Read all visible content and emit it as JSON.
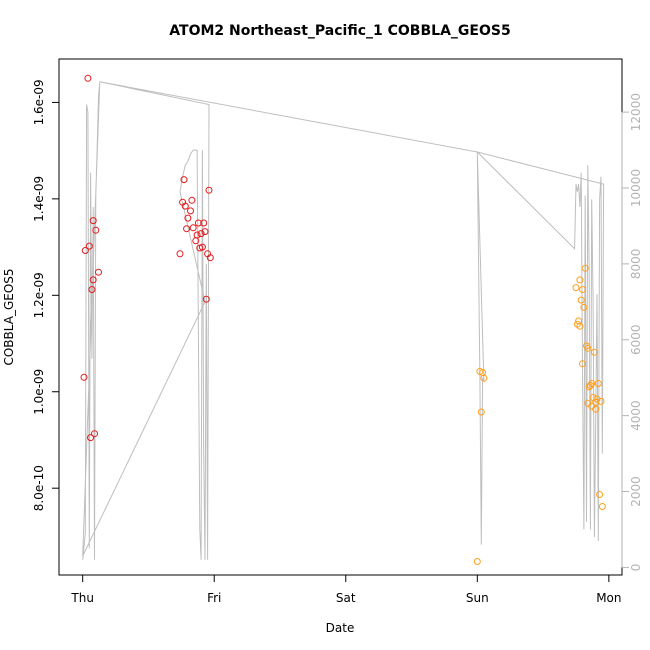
{
  "chart_data": {
    "type": "scatter",
    "title": "ATOM2 Northeast_Pacific_1 COBBLA_GEOS5",
    "xlabel": "Date",
    "ylabel": "COBBLA_GEOS5",
    "x_unit": "days since Thursday 00:00",
    "x_ticks": [
      {
        "value": 0,
        "label": "Thu"
      },
      {
        "value": 1,
        "label": "Fri"
      },
      {
        "value": 2,
        "label": "Sat"
      },
      {
        "value": 3,
        "label": "Sun"
      },
      {
        "value": 4,
        "label": "Mon"
      }
    ],
    "xlim": [
      -0.18,
      4.1
    ],
    "y_left": {
      "ylim": [
        6.2e-10,
        1.69e-09
      ],
      "ticks": [
        {
          "value": 8e-10,
          "label": "8.0e-10"
        },
        {
          "value": 1e-09,
          "label": "1.0e-09"
        },
        {
          "value": 1.2e-09,
          "label": "1.2e-09"
        },
        {
          "value": 1.4e-09,
          "label": "1.4e-09"
        },
        {
          "value": 1.6e-09,
          "label": "1.6e-09"
        }
      ]
    },
    "y_right": {
      "ylim": [
        -200,
        13400
      ],
      "color": "#b3b3b3",
      "ticks": [
        {
          "value": 0,
          "label": "0"
        },
        {
          "value": 2000,
          "label": "2000"
        },
        {
          "value": 4000,
          "label": "4000"
        },
        {
          "value": 6000,
          "label": "6000"
        },
        {
          "value": 8000,
          "label": "8000"
        },
        {
          "value": 10000,
          "label": "10000"
        },
        {
          "value": 12000,
          "label": "12000"
        }
      ]
    },
    "series": [
      {
        "color": "#e41a1c",
        "axis": "left",
        "points": [
          [
            0.01,
            1.03e-09
          ],
          [
            0.02,
            1.293e-09
          ],
          [
            0.04,
            1.65e-09
          ],
          [
            0.05,
            1.302e-09
          ],
          [
            0.06,
            9.05e-10
          ],
          [
            0.07,
            1.212e-09
          ],
          [
            0.08,
            1.355e-09
          ],
          [
            0.08,
            1.232e-09
          ],
          [
            0.09,
            9.13e-10
          ],
          [
            0.1,
            1.335e-09
          ],
          [
            0.12,
            1.248e-09
          ],
          [
            0.74,
            1.286e-09
          ],
          [
            0.76,
            1.393e-09
          ],
          [
            0.77,
            1.44e-09
          ],
          [
            0.78,
            1.385e-09
          ],
          [
            0.79,
            1.338e-09
          ],
          [
            0.8,
            1.36e-09
          ],
          [
            0.82,
            1.375e-09
          ],
          [
            0.83,
            1.397e-09
          ],
          [
            0.84,
            1.34e-09
          ],
          [
            0.86,
            1.313e-09
          ],
          [
            0.87,
            1.325e-09
          ],
          [
            0.88,
            1.35e-09
          ],
          [
            0.89,
            1.298e-09
          ],
          [
            0.9,
            1.328e-09
          ],
          [
            0.91,
            1.3e-09
          ],
          [
            0.92,
            1.35e-09
          ],
          [
            0.93,
            1.332e-09
          ],
          [
            0.94,
            1.192e-09
          ],
          [
            0.95,
            1.286e-09
          ],
          [
            0.96,
            1.418e-09
          ],
          [
            0.97,
            1.278e-09
          ]
        ]
      },
      {
        "color": "#ff9f1c",
        "axis": "left",
        "points": [
          [
            3.0,
            6.48e-10
          ],
          [
            3.02,
            1.042e-09
          ],
          [
            3.03,
            9.58e-10
          ],
          [
            3.04,
            1.04e-09
          ],
          [
            3.05,
            1.028e-09
          ],
          [
            3.75,
            1.216e-09
          ],
          [
            3.76,
            1.14e-09
          ],
          [
            3.77,
            1.147e-09
          ],
          [
            3.78,
            1.232e-09
          ],
          [
            3.78,
            1.136e-09
          ],
          [
            3.79,
            1.19e-09
          ],
          [
            3.8,
            1.212e-09
          ],
          [
            3.8,
            1.058e-09
          ],
          [
            3.81,
            1.175e-09
          ],
          [
            3.82,
            1.256e-09
          ],
          [
            3.83,
            1.095e-09
          ],
          [
            3.84,
            9.76e-10
          ],
          [
            3.84,
            1.09e-09
          ],
          [
            3.85,
            1.01e-09
          ],
          [
            3.86,
            1.013e-09
          ],
          [
            3.87,
            9.7e-10
          ],
          [
            3.87,
            1.017e-09
          ],
          [
            3.88,
            9.88e-10
          ],
          [
            3.89,
            1.082e-09
          ],
          [
            3.9,
            9.78e-10
          ],
          [
            3.9,
            9.64e-10
          ],
          [
            3.91,
            9.85e-10
          ],
          [
            3.92,
            1.017e-09
          ],
          [
            3.93,
            7.87e-10
          ],
          [
            3.94,
            9.8e-10
          ],
          [
            3.95,
            7.62e-10
          ]
        ]
      }
    ],
    "altitude_line": {
      "color": "#bebebe",
      "axis": "right",
      "points": [
        [
          0.0,
          200
        ],
        [
          0.02,
          900
        ],
        [
          0.03,
          12200
        ],
        [
          0.04,
          12000
        ],
        [
          0.05,
          500
        ],
        [
          0.06,
          10400
        ],
        [
          0.07,
          5500
        ],
        [
          0.08,
          9500
        ],
        [
          0.09,
          200
        ],
        [
          0.1,
          9800
        ],
        [
          0.11,
          11000
        ],
        [
          0.12,
          12400
        ],
        [
          0.13,
          12800
        ],
        [
          0.0,
          300
        ],
        [
          0.93,
          7000
        ],
        [
          0.74,
          9900
        ],
        [
          0.76,
          10300
        ],
        [
          0.78,
          10600
        ],
        [
          0.8,
          10700
        ],
        [
          0.82,
          10900
        ],
        [
          0.84,
          11000
        ],
        [
          0.87,
          11000
        ],
        [
          0.89,
          1000
        ],
        [
          0.9,
          200
        ],
        [
          0.91,
          11000
        ],
        [
          0.92,
          3000
        ],
        [
          0.93,
          200
        ],
        [
          0.94,
          8000
        ],
        [
          0.95,
          200
        ],
        [
          0.96,
          12200
        ],
        [
          0.13,
          12800
        ],
        [
          3.0,
          10950
        ],
        [
          3.02,
          5000
        ],
        [
          3.03,
          600
        ],
        [
          3.04,
          5000
        ],
        [
          3.05,
          4900
        ],
        [
          3.0,
          10950
        ],
        [
          3.74,
          8400
        ],
        [
          3.75,
          10100
        ],
        [
          3.76,
          9900
        ],
        [
          3.77,
          10100
        ],
        [
          3.78,
          9500
        ],
        [
          3.79,
          10400
        ],
        [
          3.8,
          5200
        ],
        [
          3.81,
          1000
        ],
        [
          3.82,
          9800
        ],
        [
          3.83,
          1200
        ],
        [
          3.84,
          10600
        ],
        [
          3.85,
          8000
        ],
        [
          3.86,
          1000
        ],
        [
          3.87,
          9700
        ],
        [
          3.88,
          7000
        ],
        [
          3.89,
          800
        ],
        [
          3.9,
          3800
        ],
        [
          3.91,
          7200
        ],
        [
          3.92,
          700
        ],
        [
          3.93,
          9700
        ],
        [
          3.94,
          10300
        ],
        [
          3.95,
          3000
        ],
        [
          3.96,
          10100
        ],
        [
          3.0,
          10950
        ]
      ]
    },
    "grid": false
  }
}
